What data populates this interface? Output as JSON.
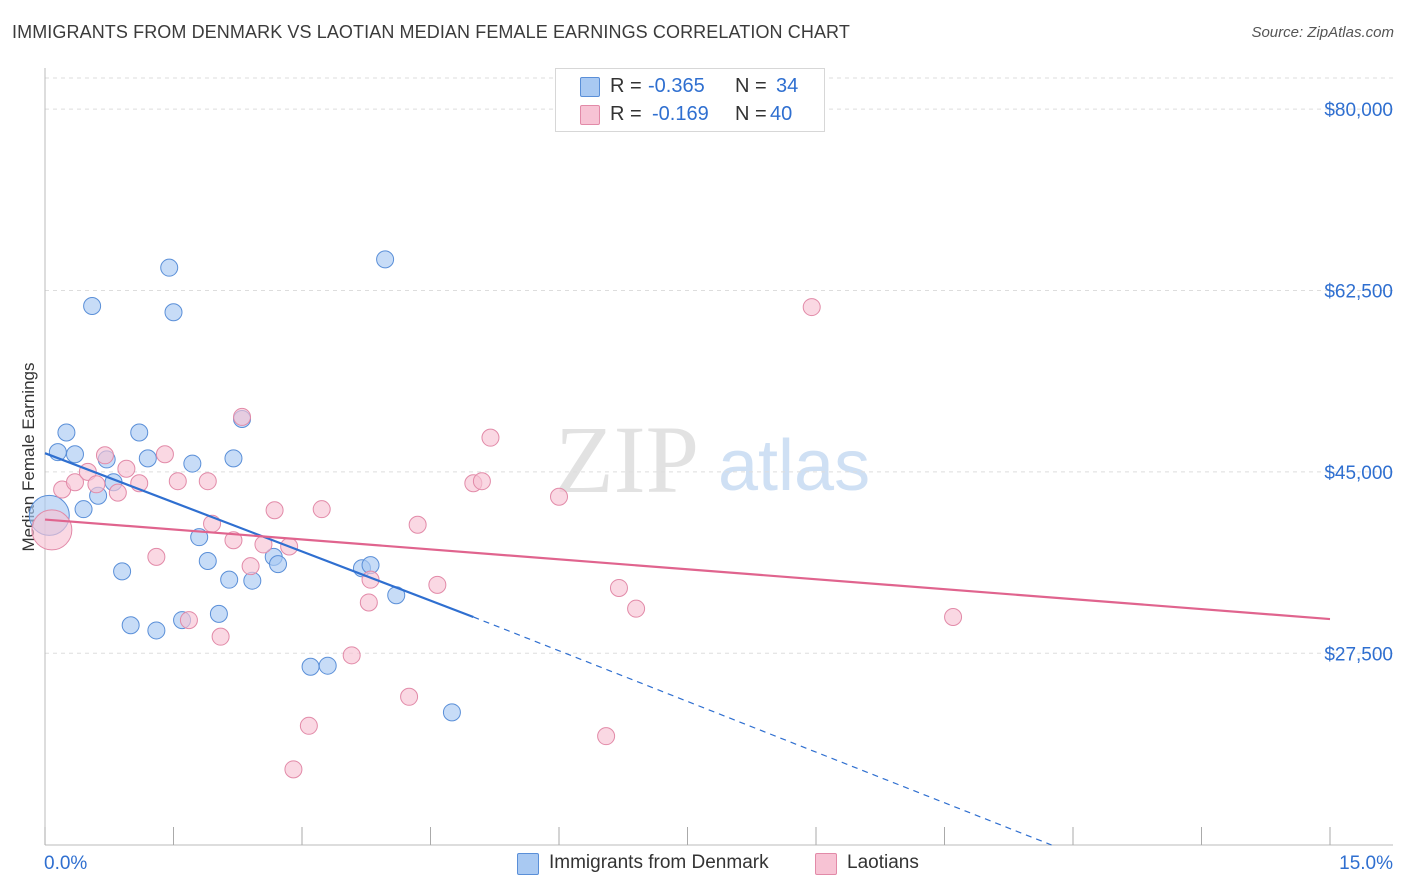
{
  "title": "IMMIGRANTS FROM DENMARK VS LAOTIAN MEDIAN FEMALE EARNINGS CORRELATION CHART",
  "source": "Source: ZipAtlas.com",
  "watermark": {
    "zip": "ZIP",
    "atlas": "atlas"
  },
  "colors": {
    "blue_fill": "#a9c9f2",
    "blue_stroke": "#5a8fd8",
    "blue_line": "#2f6fd0",
    "pink_fill": "#f7c3d4",
    "pink_stroke": "#e28aa8",
    "pink_line": "#e0648e",
    "value_text": "#2f6fd0",
    "grid": "#dddddd"
  },
  "stats": [
    {
      "r_label": "R = ",
      "r_value": "-0.365",
      "n_label": "N = ",
      "n_value": "34"
    },
    {
      "r_label": "R = ",
      "r_value": "-0.169",
      "n_label": "N = ",
      "n_value": "40"
    }
  ],
  "legend": [
    "Immigrants from Denmark",
    "Laotians"
  ],
  "chart_data": {
    "type": "scatter",
    "title": "IMMIGRANTS FROM DENMARK VS LAOTIAN MEDIAN FEMALE EARNINGS CORRELATION CHART",
    "xlabel": "",
    "ylabel": "Median Female Earnings",
    "xlim": [
      0,
      15
    ],
    "ylim": [
      9000,
      83000
    ],
    "x_tick_labels": [
      "0.0%",
      "15.0%"
    ],
    "y_ticks": [
      27500,
      45000,
      62500,
      80000
    ],
    "y_tick_labels": [
      "$27,500",
      "$45,000",
      "$62,500",
      "$80,000"
    ],
    "grid": true,
    "legend_position": "bottom",
    "series": [
      {
        "name": "Immigrants from Denmark",
        "color": "#a9c9f2",
        "trend": {
          "x": [
            0,
            5
          ],
          "y": [
            46800,
            31000
          ],
          "dashed_extension_to": [
            11.75,
            9000
          ]
        },
        "points": [
          {
            "x": 0.05,
            "y": 40800,
            "large": true
          },
          {
            "x": 0.15,
            "y": 46900
          },
          {
            "x": 0.25,
            "y": 48800
          },
          {
            "x": 0.35,
            "y": 46700
          },
          {
            "x": 0.45,
            "y": 41400
          },
          {
            "x": 0.55,
            "y": 61000
          },
          {
            "x": 0.62,
            "y": 42700
          },
          {
            "x": 0.72,
            "y": 46200
          },
          {
            "x": 0.8,
            "y": 44000
          },
          {
            "x": 0.9,
            "y": 35400
          },
          {
            "x": 1.0,
            "y": 30200
          },
          {
            "x": 1.1,
            "y": 48800
          },
          {
            "x": 1.2,
            "y": 46300
          },
          {
            "x": 1.3,
            "y": 29700
          },
          {
            "x": 1.45,
            "y": 64700
          },
          {
            "x": 1.5,
            "y": 60400
          },
          {
            "x": 1.6,
            "y": 30700
          },
          {
            "x": 1.72,
            "y": 45800
          },
          {
            "x": 1.8,
            "y": 38700
          },
          {
            "x": 1.9,
            "y": 36400
          },
          {
            "x": 2.03,
            "y": 31300
          },
          {
            "x": 2.15,
            "y": 34600
          },
          {
            "x": 2.2,
            "y": 46300
          },
          {
            "x": 2.3,
            "y": 50100
          },
          {
            "x": 2.42,
            "y": 34500
          },
          {
            "x": 2.67,
            "y": 36800
          },
          {
            "x": 2.72,
            "y": 36100
          },
          {
            "x": 3.1,
            "y": 26200
          },
          {
            "x": 3.3,
            "y": 26300
          },
          {
            "x": 3.7,
            "y": 35700
          },
          {
            "x": 3.8,
            "y": 36000
          },
          {
            "x": 3.97,
            "y": 65500
          },
          {
            "x": 4.1,
            "y": 33100
          },
          {
            "x": 4.75,
            "y": 21800
          }
        ]
      },
      {
        "name": "Laotians",
        "color": "#f7c3d4",
        "trend": {
          "x": [
            0,
            15
          ],
          "y": [
            40400,
            30800
          ]
        },
        "points": [
          {
            "x": 0.08,
            "y": 39400,
            "large": true
          },
          {
            "x": 0.2,
            "y": 43300
          },
          {
            "x": 0.35,
            "y": 44000
          },
          {
            "x": 0.5,
            "y": 45000
          },
          {
            "x": 0.6,
            "y": 43800
          },
          {
            "x": 0.7,
            "y": 46600
          },
          {
            "x": 0.85,
            "y": 43000
          },
          {
            "x": 0.95,
            "y": 45300
          },
          {
            "x": 1.1,
            "y": 43900
          },
          {
            "x": 1.3,
            "y": 36800
          },
          {
            "x": 1.4,
            "y": 46700
          },
          {
            "x": 1.55,
            "y": 44100
          },
          {
            "x": 1.68,
            "y": 30700
          },
          {
            "x": 1.9,
            "y": 44100
          },
          {
            "x": 1.95,
            "y": 40000
          },
          {
            "x": 2.05,
            "y": 29100
          },
          {
            "x": 2.2,
            "y": 38400
          },
          {
            "x": 2.3,
            "y": 50300
          },
          {
            "x": 2.4,
            "y": 35900
          },
          {
            "x": 2.55,
            "y": 38000
          },
          {
            "x": 2.68,
            "y": 41300
          },
          {
            "x": 2.85,
            "y": 37800
          },
          {
            "x": 2.9,
            "y": 16300
          },
          {
            "x": 3.08,
            "y": 20500
          },
          {
            "x": 3.23,
            "y": 41400
          },
          {
            "x": 3.58,
            "y": 27300
          },
          {
            "x": 3.78,
            "y": 32400
          },
          {
            "x": 3.8,
            "y": 34600
          },
          {
            "x": 4.25,
            "y": 23300
          },
          {
            "x": 4.35,
            "y": 39900
          },
          {
            "x": 4.58,
            "y": 34100
          },
          {
            "x": 5.0,
            "y": 43900
          },
          {
            "x": 5.1,
            "y": 44100
          },
          {
            "x": 5.2,
            "y": 48300
          },
          {
            "x": 6.0,
            "y": 42600
          },
          {
            "x": 6.55,
            "y": 19500
          },
          {
            "x": 6.7,
            "y": 33800
          },
          {
            "x": 6.9,
            "y": 31800
          },
          {
            "x": 8.95,
            "y": 60900
          },
          {
            "x": 10.6,
            "y": 31000
          }
        ]
      }
    ]
  }
}
